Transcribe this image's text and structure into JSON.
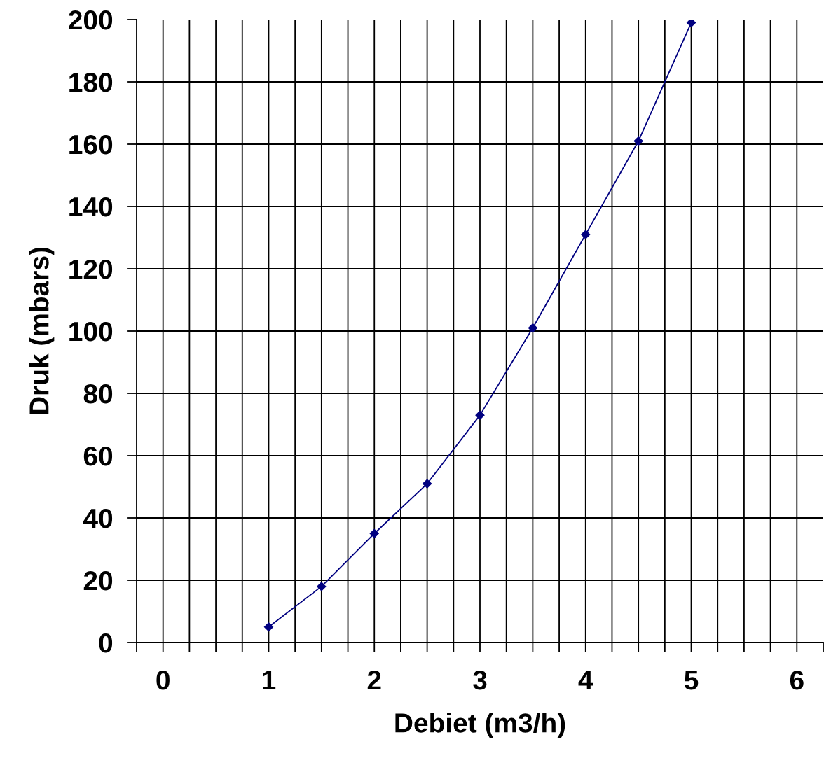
{
  "chart_data": {
    "type": "line",
    "xlabel": "Debiet (m3/h)",
    "ylabel": "Druk (mbars)",
    "x": [
      1,
      1.5,
      2,
      2.5,
      3,
      3.5,
      4,
      4.5,
      5
    ],
    "series": [
      {
        "color": "#000080",
        "values": [
          5,
          18,
          35,
          51,
          73,
          101,
          131,
          161,
          199
        ]
      }
    ],
    "xlim": [
      -0.25,
      6.25
    ],
    "xticks": [
      {
        "value": -0.25,
        "label": null
      },
      0,
      {
        "value": 0.25,
        "label": null
      },
      {
        "value": 0.5,
        "label": null
      },
      {
        "value": 0.75,
        "label": null
      },
      1,
      {
        "value": 1.25,
        "label": null
      },
      {
        "value": 1.5,
        "label": null
      },
      {
        "value": 1.75,
        "label": null
      },
      2,
      {
        "value": 2.25,
        "label": null
      },
      {
        "value": 2.5,
        "label": null
      },
      {
        "value": 2.75,
        "label": null
      },
      3,
      {
        "value": 3.25,
        "label": null
      },
      {
        "value": 3.5,
        "label": null
      },
      {
        "value": 3.75,
        "label": null
      },
      4,
      {
        "value": 4.25,
        "label": null
      },
      {
        "value": 4.5,
        "label": null
      },
      {
        "value": 4.75,
        "label": null
      },
      5,
      {
        "value": 5.25,
        "label": null
      },
      {
        "value": 5.5,
        "label": null
      },
      {
        "value": 5.75,
        "label": null
      },
      6,
      {
        "value": 6.25,
        "label": null
      }
    ],
    "ylim": [
      0,
      200
    ],
    "yticks": [
      0,
      20,
      40,
      60,
      80,
      100,
      120,
      140,
      160,
      180,
      200
    ],
    "grid": true,
    "marker": "diamond",
    "line_style": "solid",
    "legend": false
  }
}
